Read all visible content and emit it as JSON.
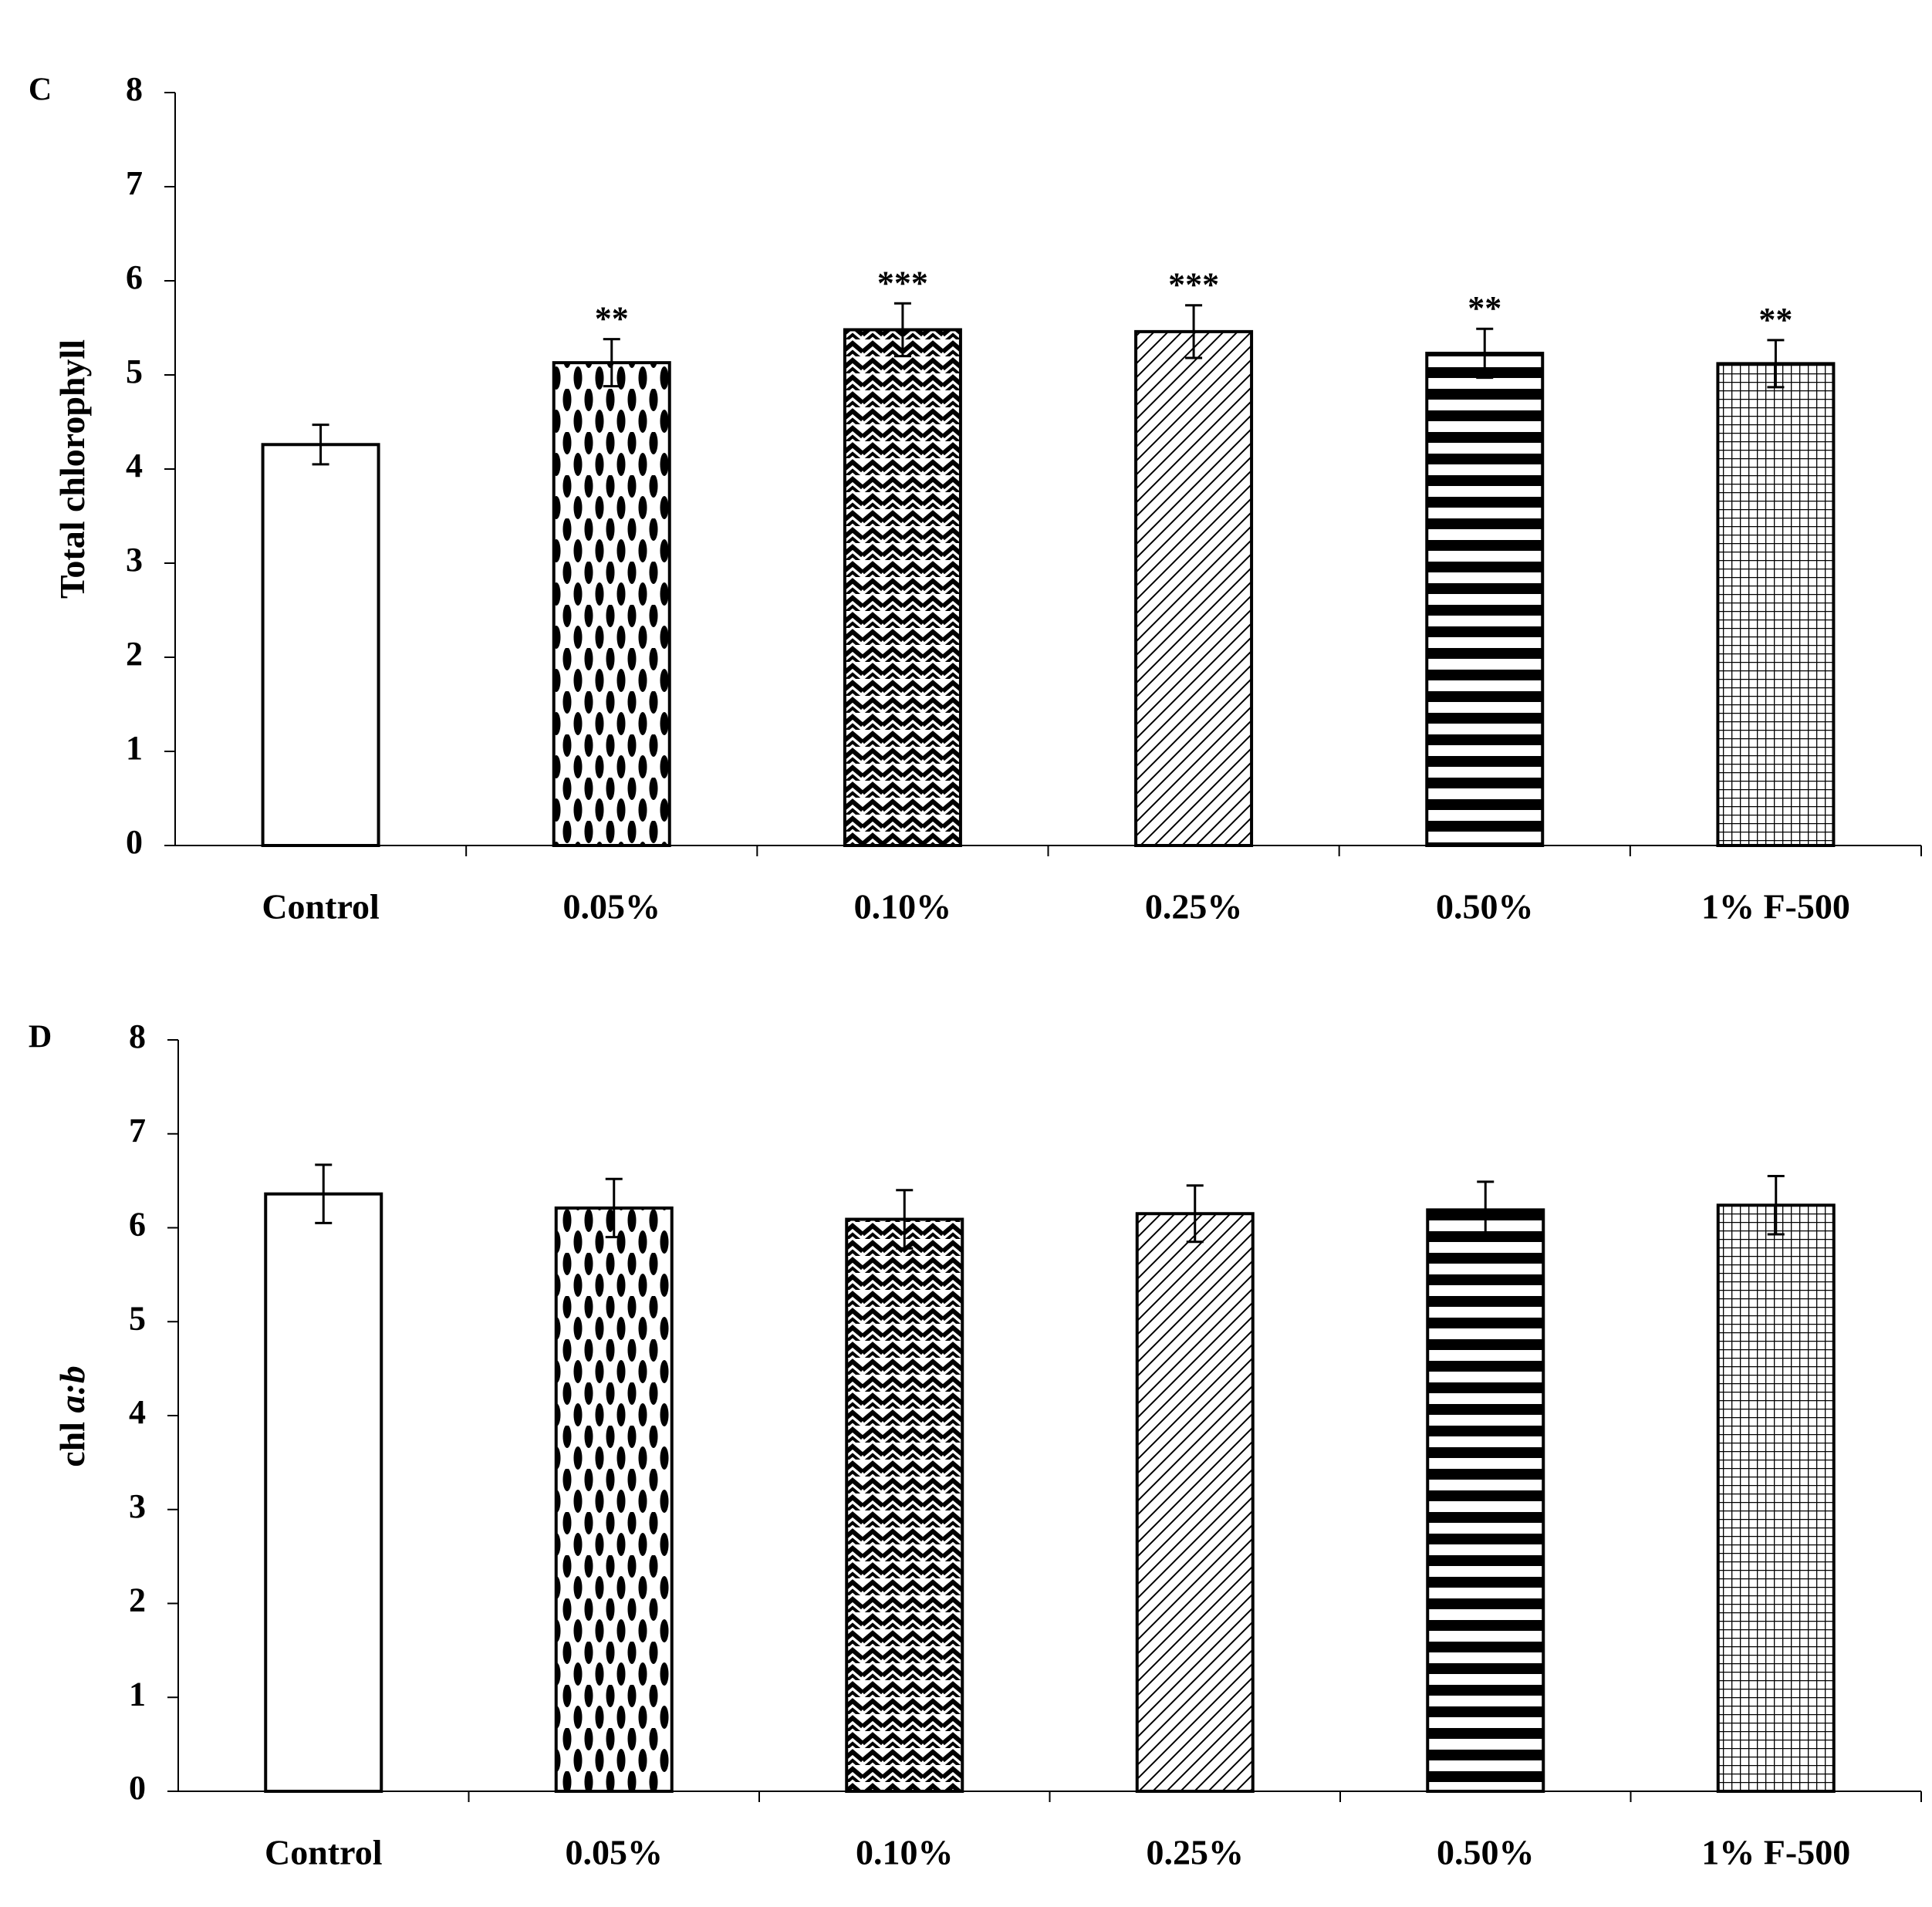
{
  "chart_data": [
    {
      "panel_label": "C",
      "type": "bar",
      "ylabel": "Total chlorophyll",
      "ylabel_parts": [
        {
          "text": "Total chlorophyll",
          "italic": false
        }
      ],
      "ylim": [
        0,
        8
      ],
      "yticks": [
        "0",
        "1",
        "2",
        "3",
        "4",
        "5",
        "6",
        "7",
        "8"
      ],
      "categories": [
        "Control",
        "0.05%",
        "0.10%",
        "0.25%",
        "0.50%",
        "1% F-500"
      ],
      "values": [
        4.26,
        5.13,
        5.48,
        5.46,
        5.23,
        5.12
      ],
      "errors": [
        0.21,
        0.25,
        0.28,
        0.28,
        0.26,
        0.25
      ],
      "annotations": [
        "",
        "**",
        "***",
        "***",
        "**",
        "**"
      ],
      "patterns": [
        "empty",
        "dots",
        "zigzag",
        "diagonal",
        "hstripes",
        "grid"
      ],
      "grid": false
    },
    {
      "panel_label": "D",
      "type": "bar",
      "ylabel": "chl a:b",
      "ylabel_parts": [
        {
          "text": "chl ",
          "italic": false
        },
        {
          "text": "a:b",
          "italic": true
        }
      ],
      "ylim": [
        0,
        8
      ],
      "yticks": [
        "0",
        "1",
        "2",
        "3",
        "4",
        "5",
        "6",
        "7",
        "8"
      ],
      "categories": [
        "Control",
        "0.05%",
        "0.10%",
        "0.25%",
        "0.50%",
        "1% F-500"
      ],
      "values": [
        6.36,
        6.21,
        6.09,
        6.15,
        6.19,
        6.24
      ],
      "errors": [
        0.31,
        0.31,
        0.31,
        0.3,
        0.3,
        0.31
      ],
      "annotations": [
        "",
        "",
        "",
        "",
        "",
        ""
      ],
      "patterns": [
        "empty",
        "dots",
        "zigzag",
        "diagonal",
        "hstripes",
        "grid"
      ],
      "grid": false
    }
  ]
}
